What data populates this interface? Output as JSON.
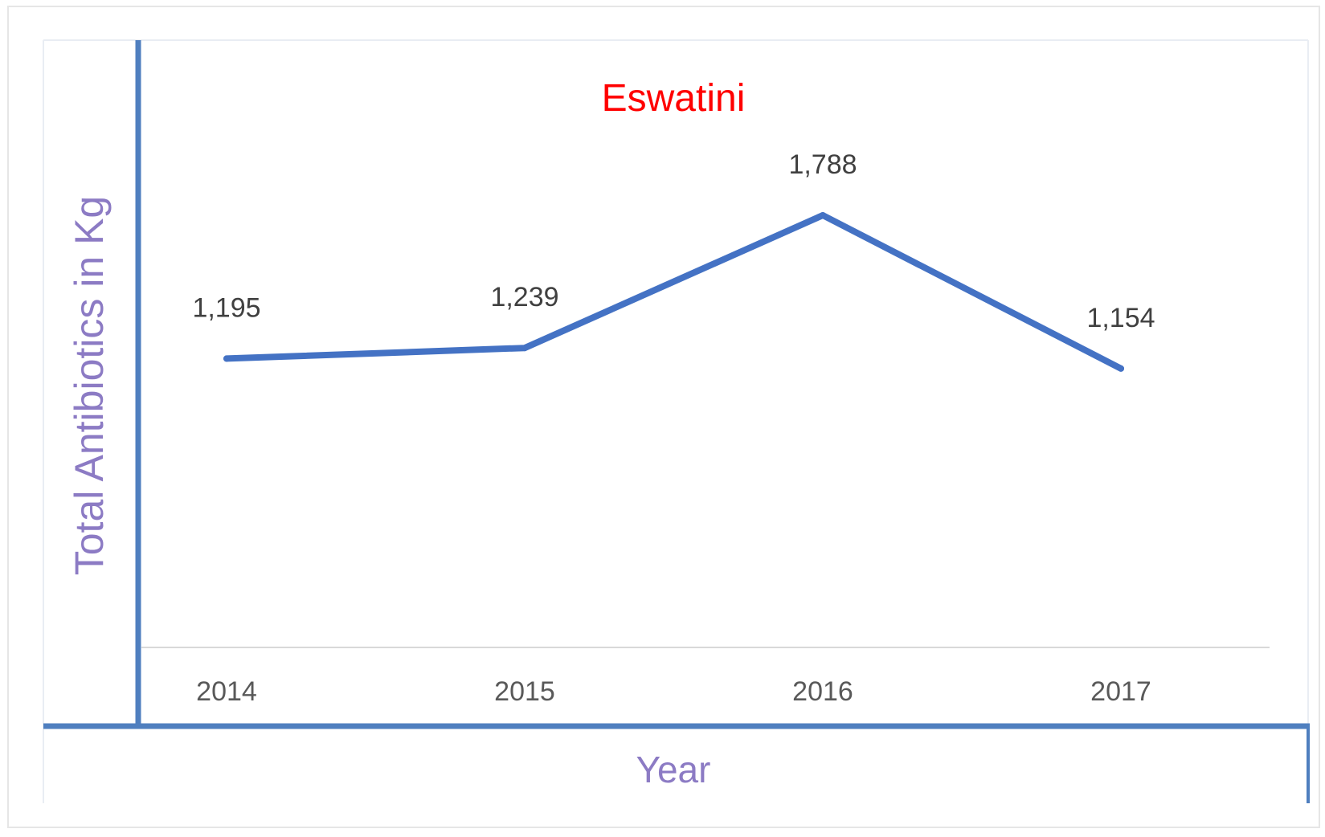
{
  "chart_data": {
    "type": "line",
    "title": "Eswatini",
    "xlabel": "Year",
    "ylabel": "Total Antibiotics in Kg",
    "categories": [
      "2014",
      "2015",
      "2016",
      "2017"
    ],
    "series": [
      {
        "values": [
          1195,
          1239,
          1788,
          1154
        ],
        "labels": [
          "1,195",
          "1,239",
          "1,788",
          "1,154"
        ]
      }
    ],
    "ylim": [
      0,
      2000
    ],
    "grid": false,
    "legend": "none",
    "colors": {
      "line": "#4472c4",
      "title": "#ff0000",
      "axis_title": "#8c7bc4",
      "tick": "#595959",
      "data_label": "#404040",
      "frame": "#4f7fbf",
      "baseline": "#d9d9d9"
    }
  }
}
